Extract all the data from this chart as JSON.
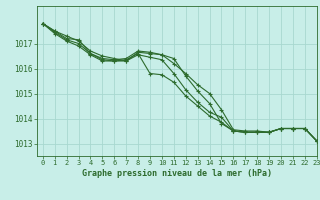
{
  "title": "Graphe pression niveau de la mer (hPa)",
  "background_color": "#c8eee8",
  "grid_color": "#a8d8d0",
  "line_color": "#2d6b2d",
  "marker_color": "#2d6b2d",
  "xlim": [
    -0.5,
    23
  ],
  "ylim": [
    1012.5,
    1018.5
  ],
  "yticks": [
    1013,
    1014,
    1015,
    1016,
    1017
  ],
  "xticks": [
    0,
    1,
    2,
    3,
    4,
    5,
    6,
    7,
    8,
    9,
    10,
    11,
    12,
    13,
    14,
    15,
    16,
    17,
    18,
    19,
    20,
    21,
    22,
    23
  ],
  "series": [
    [
      1017.8,
      1017.5,
      1017.3,
      1017.1,
      1016.7,
      1016.5,
      1016.4,
      1016.3,
      1016.65,
      1016.6,
      1016.55,
      1016.4,
      1015.7,
      1015.1,
      1014.6,
      1013.8,
      1013.5,
      1013.45,
      1013.45,
      1013.45,
      1013.6,
      1013.6,
      1013.6,
      1013.1
    ],
    [
      1017.8,
      1017.5,
      1017.2,
      1017.15,
      1016.6,
      1016.4,
      1016.35,
      1016.4,
      1016.7,
      1016.65,
      1016.55,
      1016.2,
      1015.8,
      1015.35,
      1015.0,
      1014.35,
      1013.55,
      1013.5,
      1013.5,
      1013.45,
      1013.6,
      1013.6,
      1013.6,
      1013.1
    ],
    [
      1017.8,
      1017.4,
      1017.1,
      1016.9,
      1016.55,
      1016.3,
      1016.3,
      1016.35,
      1016.6,
      1015.8,
      1015.75,
      1015.45,
      1014.9,
      1014.5,
      1014.1,
      1013.85,
      1013.5,
      1013.45,
      1013.45,
      1013.45,
      1013.6,
      1013.6,
      1013.6,
      1013.1
    ],
    [
      1017.8,
      1017.45,
      1017.15,
      1017.0,
      1016.6,
      1016.35,
      1016.3,
      1016.3,
      1016.55,
      1016.45,
      1016.35,
      1015.8,
      1015.15,
      1014.65,
      1014.25,
      1014.05,
      1013.5,
      1013.45,
      1013.45,
      1013.45,
      1013.6,
      1013.6,
      1013.6,
      1013.1
    ]
  ]
}
